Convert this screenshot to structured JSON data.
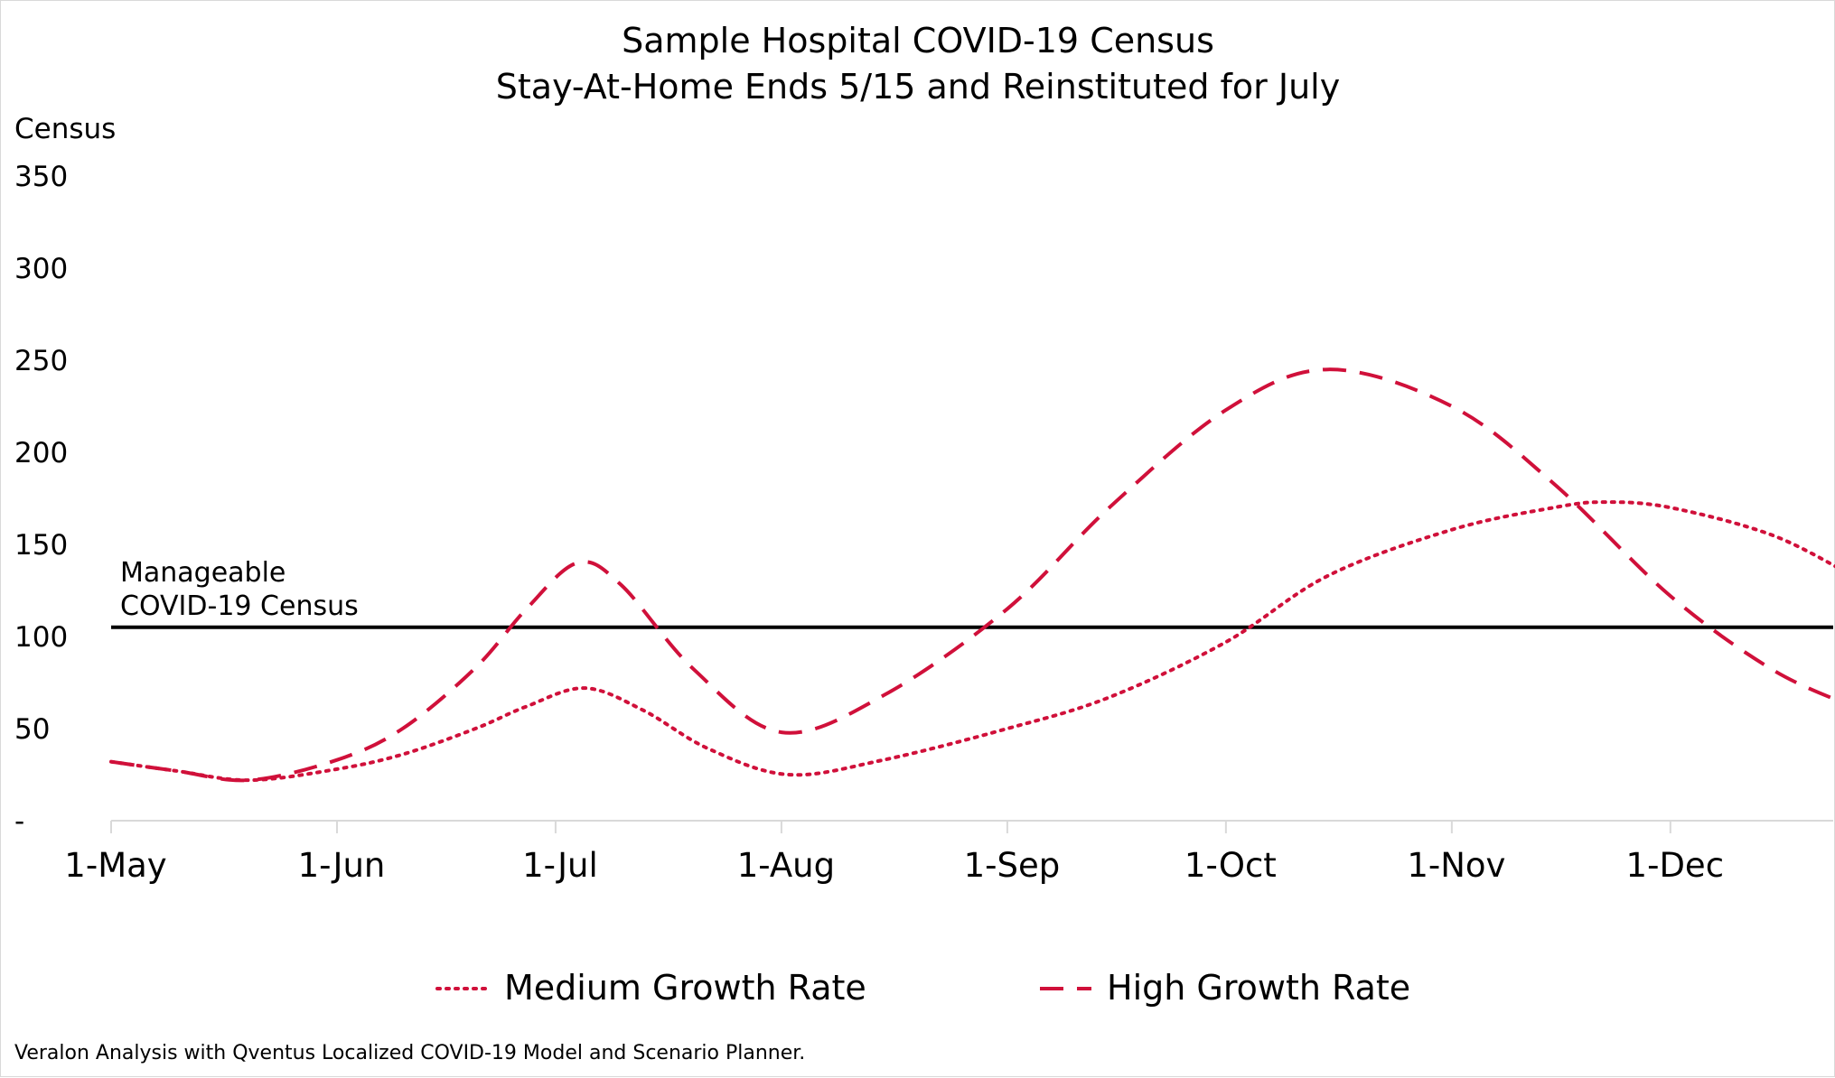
{
  "chart_data": {
    "type": "line",
    "title": "Sample Hospital COVID-19 Census",
    "subtitle": "Stay-At-Home Ends 5/15 and Reinstituted for July",
    "ylabel": "Census",
    "xlabel": "",
    "ylim": [
      0,
      350
    ],
    "y_ticks": [
      {
        "value": 0,
        "label": "-"
      },
      {
        "value": 50,
        "label": "50"
      },
      {
        "value": 100,
        "label": "100"
      },
      {
        "value": 150,
        "label": "150"
      },
      {
        "value": 200,
        "label": "200"
      },
      {
        "value": 250,
        "label": "250"
      },
      {
        "value": 300,
        "label": "300"
      },
      {
        "value": 350,
        "label": "350"
      }
    ],
    "x_ticks": [
      {
        "date": "2020-05-01",
        "label": "1-May"
      },
      {
        "date": "2020-06-01",
        "label": "1-Jun"
      },
      {
        "date": "2020-07-01",
        "label": "1-Jul"
      },
      {
        "date": "2020-08-01",
        "label": "1-Aug"
      },
      {
        "date": "2020-09-01",
        "label": "1-Sep"
      },
      {
        "date": "2020-10-01",
        "label": "1-Oct"
      },
      {
        "date": "2020-11-01",
        "label": "1-Nov"
      },
      {
        "date": "2020-12-01",
        "label": "1-Dec"
      }
    ],
    "xlim": [
      "2020-05-01",
      "2020-12-26"
    ],
    "grid": false,
    "legend_position": "bottom",
    "series": [
      {
        "name": "Medium Growth Rate",
        "style": "dotted",
        "color": "#d0103a",
        "points": [
          [
            "2020-05-01",
            32
          ],
          [
            "2020-05-10",
            27
          ],
          [
            "2020-05-20",
            22
          ],
          [
            "2020-06-01",
            28
          ],
          [
            "2020-06-10",
            36
          ],
          [
            "2020-06-20",
            50
          ],
          [
            "2020-06-27",
            62
          ],
          [
            "2020-07-05",
            72
          ],
          [
            "2020-07-13",
            60
          ],
          [
            "2020-07-22",
            39
          ],
          [
            "2020-08-02",
            25
          ],
          [
            "2020-08-15",
            33
          ],
          [
            "2020-09-01",
            50
          ],
          [
            "2020-09-15",
            67
          ],
          [
            "2020-10-01",
            97
          ],
          [
            "2020-10-15",
            133
          ],
          [
            "2020-11-01",
            158
          ],
          [
            "2020-11-15",
            170
          ],
          [
            "2020-11-22",
            173
          ],
          [
            "2020-12-01",
            170
          ],
          [
            "2020-12-15",
            155
          ],
          [
            "2020-12-26",
            133
          ]
        ]
      },
      {
        "name": "High Growth Rate",
        "style": "dashed",
        "color": "#d0103a",
        "points": [
          [
            "2020-05-01",
            32
          ],
          [
            "2020-05-10",
            27
          ],
          [
            "2020-05-20",
            22
          ],
          [
            "2020-06-01",
            33
          ],
          [
            "2020-06-10",
            50
          ],
          [
            "2020-06-20",
            83
          ],
          [
            "2020-06-27",
            115
          ],
          [
            "2020-07-04",
            140
          ],
          [
            "2020-07-10",
            128
          ],
          [
            "2020-07-20",
            82
          ],
          [
            "2020-08-01",
            48
          ],
          [
            "2020-08-15",
            68
          ],
          [
            "2020-09-01",
            115
          ],
          [
            "2020-09-15",
            170
          ],
          [
            "2020-10-01",
            223
          ],
          [
            "2020-10-15",
            245
          ],
          [
            "2020-11-01",
            225
          ],
          [
            "2020-11-15",
            183
          ],
          [
            "2020-12-01",
            122
          ],
          [
            "2020-12-15",
            82
          ],
          [
            "2020-12-26",
            62
          ]
        ]
      }
    ],
    "reference_line": {
      "value": 105,
      "label_line1": "Manageable",
      "label_line2": "COVID-19 Census",
      "color": "#000000"
    },
    "source_note": "Veralon Analysis with Qventus Localized COVID-19 Model and Scenario Planner."
  }
}
